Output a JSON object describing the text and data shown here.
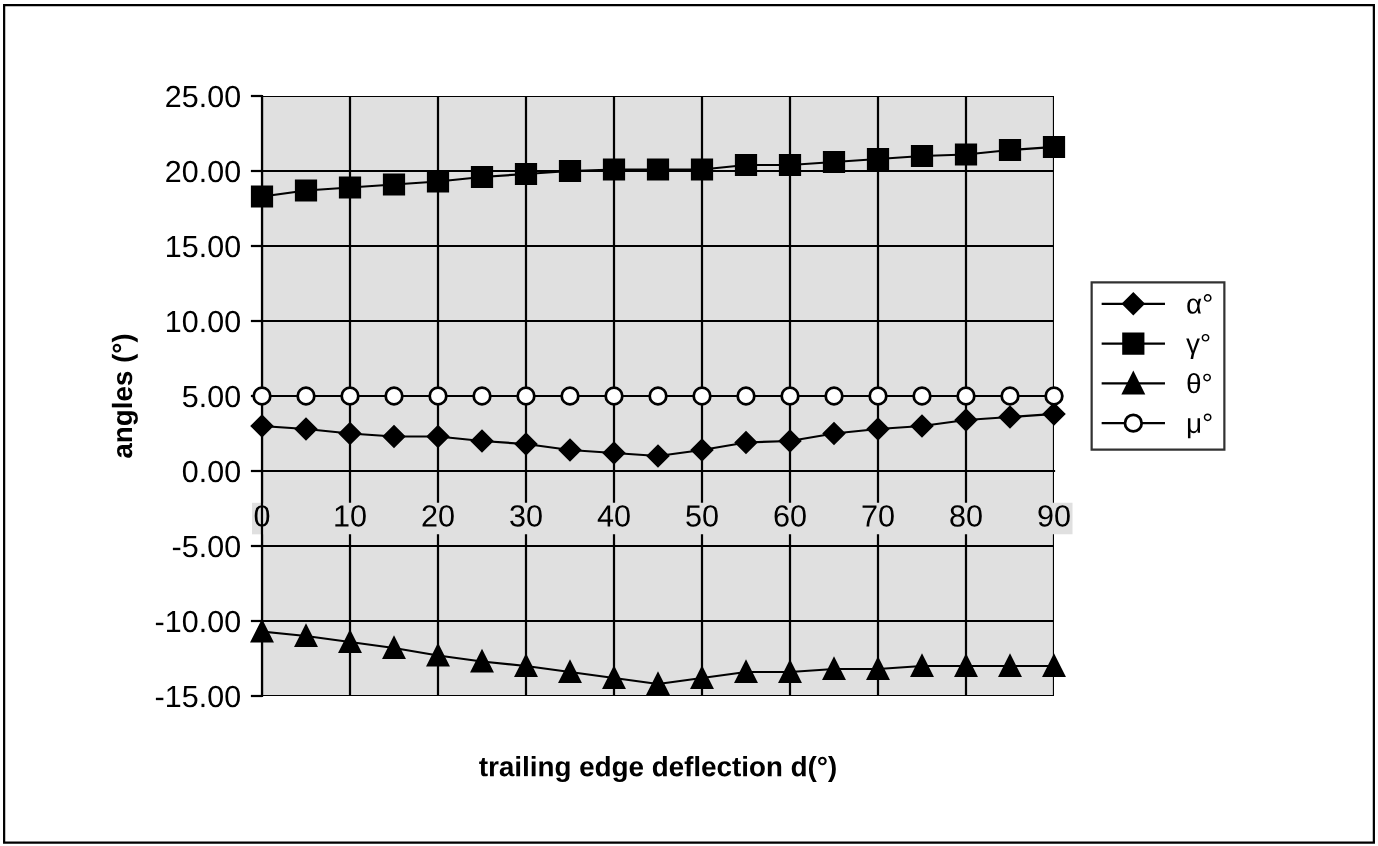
{
  "chart_data": {
    "type": "line",
    "xlabel": "trailing edge deflection d(°)",
    "ylabel": "angles (°)",
    "x": [
      0,
      5,
      10,
      15,
      20,
      25,
      30,
      35,
      40,
      45,
      50,
      55,
      60,
      65,
      70,
      75,
      80,
      85,
      90
    ],
    "series": [
      {
        "name": "α°",
        "color": "#000000",
        "marker": "diamond",
        "values": [
          3.0,
          2.8,
          2.5,
          2.3,
          2.3,
          2.0,
          1.8,
          1.4,
          1.2,
          1.0,
          1.4,
          1.9,
          2.0,
          2.5,
          2.8,
          3.0,
          3.4,
          3.6,
          3.8
        ]
      },
      {
        "name": "γ°",
        "color": "#000000",
        "marker": "square",
        "values": [
          18.3,
          18.7,
          18.9,
          19.1,
          19.3,
          19.6,
          19.8,
          20.0,
          20.1,
          20.1,
          20.1,
          20.4,
          20.4,
          20.6,
          20.8,
          21.0,
          21.1,
          21.4,
          21.6
        ]
      },
      {
        "name": "θ°",
        "color": "#000000",
        "marker": "triangle",
        "values": [
          -10.7,
          -11.0,
          -11.4,
          -11.8,
          -12.3,
          -12.7,
          -13.0,
          -13.4,
          -13.8,
          -14.2,
          -13.8,
          -13.4,
          -13.4,
          -13.2,
          -13.2,
          -13.0,
          -13.0,
          -13.0,
          -13.0
        ]
      },
      {
        "name": "μ°",
        "color": "#000000",
        "marker": "circle",
        "values": [
          5,
          5,
          5,
          5,
          5,
          5,
          5,
          5,
          5,
          5,
          5,
          5,
          5,
          5,
          5,
          5,
          5,
          5,
          5
        ]
      }
    ],
    "xlim": [
      0,
      90
    ],
    "xticks": [
      0,
      10,
      20,
      30,
      40,
      50,
      60,
      70,
      80,
      90
    ],
    "ylim": [
      -15,
      25
    ],
    "yticks": [
      {
        "value": -15,
        "label": "-15.00"
      },
      {
        "value": -10,
        "label": "-10.00"
      },
      {
        "value": -5,
        "label": "-5.00"
      },
      {
        "value": 0,
        "label": "0.00"
      },
      {
        "value": 5,
        "label": "5.00"
      },
      {
        "value": 10,
        "label": "10.00"
      },
      {
        "value": 15,
        "label": "15.00"
      },
      {
        "value": 20,
        "label": "20.00"
      },
      {
        "value": 25,
        "label": "25.00"
      }
    ],
    "grid": true,
    "legend": "right",
    "line_style": "solid"
  }
}
